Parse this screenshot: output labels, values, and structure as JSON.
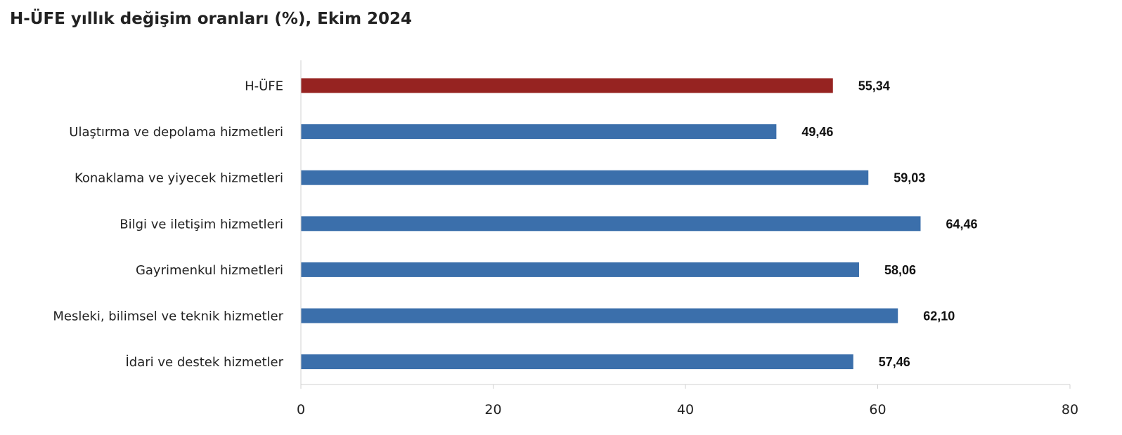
{
  "chart_data": {
    "type": "bar",
    "orientation": "horizontal",
    "title": "H-ÜFE yıllık değişim oranları (%), Ekim 2024",
    "categories": [
      "H-ÜFE",
      "Ulaştırma ve depolama hizmetleri",
      "Konaklama ve yiyecek hizmetleri",
      "Bilgi ve iletişim hizmetleri",
      "Gayrimenkul hizmetleri",
      "Mesleki, bilimsel ve teknik hizmetler",
      "İdari ve destek hizmetler"
    ],
    "values": [
      55.34,
      49.46,
      59.03,
      64.46,
      58.06,
      62.1,
      57.46
    ],
    "value_labels": [
      "55,34",
      "49,46",
      "59,03",
      "64,46",
      "58,06",
      "62,10",
      "57,46"
    ],
    "bar_colors": [
      "#962321",
      "#3b6fab",
      "#3b6fab",
      "#3b6fab",
      "#3b6fab",
      "#3b6fab",
      "#3b6fab"
    ],
    "xlim": [
      0,
      80
    ],
    "xticks": [
      0,
      20,
      40,
      60,
      80
    ],
    "xtick_labels": [
      "0",
      "20",
      "40",
      "60",
      "80"
    ],
    "xlabel": "",
    "ylabel": "",
    "grid": false,
    "legend": "none",
    "axis_color": "#d0d0d0"
  }
}
